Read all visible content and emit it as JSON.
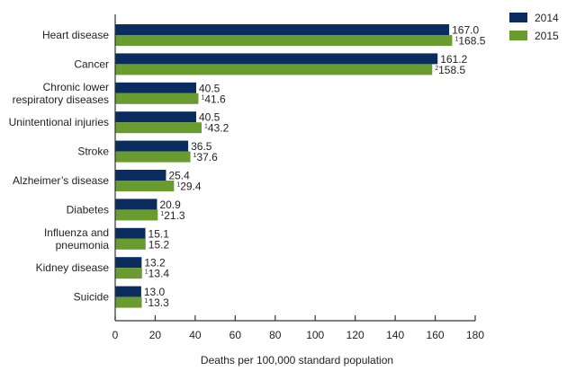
{
  "chart_data": {
    "type": "bar",
    "orientation": "horizontal",
    "title": "",
    "xlabel": "Deaths per 100,000 standard population",
    "ylabel": "",
    "xlim": [
      0,
      180
    ],
    "xticks": [
      "0",
      "20",
      "40",
      "60",
      "80",
      "100",
      "120",
      "140",
      "160",
      "180"
    ],
    "grid": false,
    "legend_position": "top-right",
    "categories": [
      [
        "Heart disease"
      ],
      [
        "Cancer"
      ],
      [
        "Chronic lower",
        "respiratory diseases"
      ],
      [
        "Unintentional injuries"
      ],
      [
        "Stroke"
      ],
      [
        "Alzheimer’s disease"
      ],
      [
        "Diabetes"
      ],
      [
        "Influenza and",
        "pneumonia"
      ],
      [
        "Kidney disease"
      ],
      [
        "Suicide"
      ]
    ],
    "series": [
      {
        "name": "2014",
        "color": "#0b2c5f",
        "values": [
          167.0,
          161.2,
          40.5,
          40.5,
          36.5,
          25.4,
          20.9,
          15.1,
          13.2,
          13.0
        ],
        "labels": [
          "167.0",
          "161.2",
          "40.5",
          "40.5",
          "36.5",
          "25.4",
          "20.9",
          "15.1",
          "13.2",
          "13.0"
        ],
        "footnotes": [
          "",
          "",
          "",
          "",
          "",
          "",
          "",
          "",
          "",
          ""
        ]
      },
      {
        "name": "2015",
        "color": "#6a9b2f",
        "values": [
          168.5,
          158.5,
          41.6,
          43.2,
          37.6,
          29.4,
          21.3,
          15.2,
          13.4,
          13.3
        ],
        "labels": [
          "168.5",
          "158.5",
          "41.6",
          "43.2",
          "37.6",
          "29.4",
          "21.3",
          "15.2",
          "13.4",
          "13.3"
        ],
        "footnotes": [
          "1",
          "2",
          "1",
          "1",
          "1",
          "1",
          "1",
          "",
          "1",
          "1"
        ]
      }
    ]
  }
}
